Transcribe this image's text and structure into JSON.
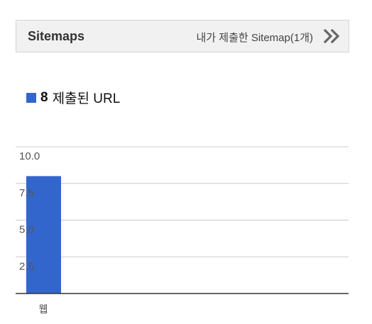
{
  "sitemaps": {
    "title": "Sitemaps",
    "summary": "내가 제출한 Sitemap(1개)"
  },
  "legend": {
    "count": "8",
    "label": "제출된 URL"
  },
  "colors": {
    "bar": "#3366cc",
    "grid": "#cccccc",
    "axis": "#333333"
  },
  "chart_data": {
    "type": "bar",
    "categories": [
      "웹"
    ],
    "series": [
      {
        "name": "제출된 URL",
        "values": [
          8
        ]
      }
    ],
    "ylim": [
      0,
      10
    ],
    "yticks": [
      "10.0",
      "7.5",
      "5.0",
      "2.5"
    ],
    "ytick_values": [
      10,
      7.5,
      5,
      2.5
    ],
    "grid": true
  }
}
